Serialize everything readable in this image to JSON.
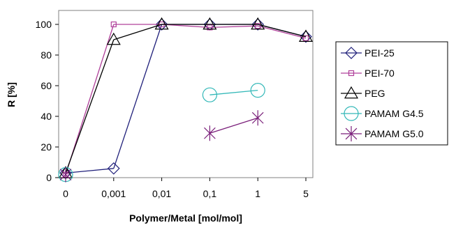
{
  "chart_data": {
    "type": "line",
    "categories": [
      "0",
      "0,001",
      "0,01",
      "0,1",
      "1",
      "5"
    ],
    "xlabel": "Polymer/Metal [mol/mol]",
    "ylabel": "R [%]",
    "ylim": [
      0,
      100
    ],
    "yticks": [
      0,
      20,
      40,
      60,
      80,
      100
    ],
    "grid": false,
    "legend_position": "right",
    "series": [
      {
        "name": "PEI-25",
        "color": "#1F1F7A",
        "marker": "diamond",
        "values": [
          3,
          6,
          100,
          100,
          100,
          92
        ]
      },
      {
        "name": "PEI-70",
        "color": "#B0409A",
        "marker": "square",
        "values": [
          2,
          100,
          100,
          98,
          99,
          91
        ]
      },
      {
        "name": "PEG",
        "color": "#000000",
        "marker": "triangle",
        "values": [
          3,
          90,
          100,
          100,
          100,
          92
        ]
      },
      {
        "name": "PAMAM G4.5",
        "color": "#33B8B8",
        "marker": "circle",
        "values": [
          2,
          null,
          null,
          54,
          57,
          null
        ]
      },
      {
        "name": "PAMAM G5.0",
        "color": "#7A1F7A",
        "marker": "star",
        "values": [
          2,
          null,
          null,
          29,
          39,
          null
        ]
      }
    ]
  }
}
